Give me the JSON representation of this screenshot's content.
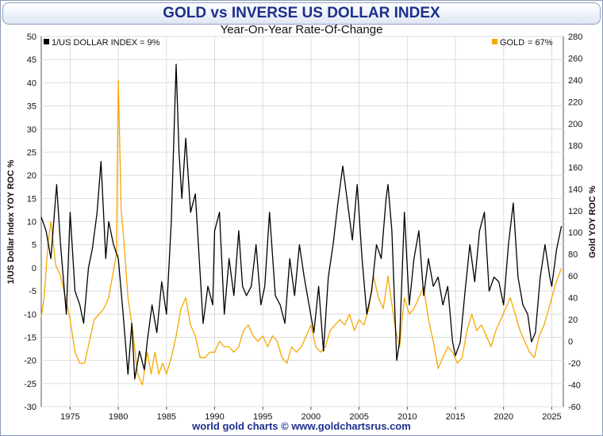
{
  "title": "GOLD vs INVERSE US DOLLAR INDEX",
  "subtitle": "Year-On-Year Rate-Of-Change",
  "footer": "world gold charts © www.goldchartsrus.com",
  "colors": {
    "usd": "#000000",
    "gold": "#f5a800",
    "title": "#1d2f8c"
  },
  "chart_data": {
    "type": "line",
    "x_ticks": [
      "1975",
      "1980",
      "1985",
      "1990",
      "1995",
      "2000",
      "2005",
      "2010",
      "2015",
      "2020",
      "2025"
    ],
    "xlim": [
      1972.0,
      2026.2
    ],
    "left_axis": {
      "label": "1/US Dollar Index  YOY ROC  %",
      "ylim": [
        -30,
        50
      ],
      "ticks": [
        "-30",
        "-25",
        "-20",
        "-15",
        "-10",
        "-5",
        "0",
        "5",
        "10",
        "15",
        "20",
        "25",
        "30",
        "35",
        "40",
        "45",
        "50"
      ]
    },
    "right_axis": {
      "label": "Gold  YOY ROC  %",
      "ylim": [
        -60,
        280
      ],
      "ticks": [
        "-60",
        "-40",
        "-20",
        "0",
        "20",
        "40",
        "60",
        "80",
        "100",
        "120",
        "140",
        "160",
        "180",
        "200",
        "220",
        "240",
        "260",
        "280"
      ]
    },
    "legend": {
      "usd_label": "1/US DOLLAR INDEX",
      "usd_value": "= 9%",
      "gold_label": "GOLD",
      "gold_value": "= 67%",
      "usd_position": "top-left",
      "gold_position": "top-right"
    },
    "grid": true,
    "series": [
      {
        "name": "1/US DOLLAR INDEX",
        "axis": "left",
        "x": [
          1972.0,
          1972.5,
          1973.0,
          1973.6,
          1974.0,
          1974.6,
          1975.0,
          1975.5,
          1976.0,
          1976.4,
          1976.9,
          1977.3,
          1977.8,
          1978.2,
          1978.7,
          1979.0,
          1979.5,
          1980.0,
          1980.5,
          1981.0,
          1981.4,
          1981.7,
          1982.2,
          1982.7,
          1983.0,
          1983.5,
          1984.0,
          1984.5,
          1985.0,
          1985.5,
          1986.0,
          1986.3,
          1986.6,
          1987.0,
          1987.5,
          1988.0,
          1988.4,
          1988.8,
          1989.3,
          1989.8,
          1990.0,
          1990.5,
          1991.0,
          1991.5,
          1992.0,
          1992.5,
          1992.9,
          1993.3,
          1993.8,
          1994.3,
          1994.8,
          1995.2,
          1995.7,
          1996.3,
          1996.8,
          1997.3,
          1997.8,
          1998.3,
          1998.8,
          1999.3,
          1999.8,
          2000.3,
          2000.8,
          2001.3,
          2001.8,
          2002.3,
          2002.8,
          2003.3,
          2003.8,
          2004.3,
          2004.8,
          2005.3,
          2005.8,
          2006.3,
          2006.8,
          2007.3,
          2007.8,
          2008.0,
          2008.4,
          2008.9,
          2009.2,
          2009.7,
          2010.2,
          2010.7,
          2011.2,
          2011.7,
          2012.2,
          2012.7,
          2013.2,
          2013.7,
          2014.2,
          2014.7,
          2015.0,
          2015.5,
          2016.0,
          2016.5,
          2017.0,
          2017.5,
          2018.0,
          2018.5,
          2019.0,
          2019.5,
          2020.0,
          2020.5,
          2021.0,
          2021.5,
          2022.0,
          2022.5,
          2022.9,
          2023.3,
          2023.8,
          2024.3,
          2024.8,
          2025.0,
          2025.5,
          2026.0
        ],
        "values": [
          11,
          8,
          2,
          18,
          5,
          -10,
          12,
          -5,
          -8,
          -12,
          0,
          4,
          12,
          23,
          2,
          10,
          5,
          2,
          -10,
          -23,
          -12,
          -24,
          -18,
          -22,
          -16,
          -8,
          -14,
          -3,
          -10,
          10,
          44,
          25,
          15,
          28,
          12,
          16,
          2,
          -12,
          -4,
          -8,
          8,
          12,
          -10,
          2,
          -6,
          8,
          -4,
          -6,
          -4,
          5,
          -8,
          -4,
          12,
          -6,
          -8,
          -12,
          2,
          -6,
          5,
          -2,
          -8,
          -14,
          -4,
          -18,
          -2,
          5,
          14,
          22,
          14,
          6,
          18,
          2,
          -10,
          -5,
          5,
          2,
          15,
          18,
          8,
          -20,
          -16,
          12,
          -8,
          2,
          8,
          -6,
          2,
          -4,
          -2,
          -8,
          -4,
          -16,
          -19,
          -16,
          -5,
          5,
          -3,
          8,
          12,
          -5,
          -2,
          -3,
          -8,
          5,
          14,
          -2,
          -8,
          -10,
          -16,
          -14,
          -2,
          5,
          -2,
          -4,
          4,
          9
        ],
        "color": "#000000"
      },
      {
        "name": "GOLD",
        "axis": "right",
        "x": [
          1972.0,
          1972.3,
          1972.7,
          1973.0,
          1973.5,
          1974.0,
          1974.5,
          1975.0,
          1975.5,
          1976.0,
          1976.5,
          1977.0,
          1977.5,
          1978.0,
          1978.5,
          1979.0,
          1979.4,
          1979.8,
          1980.0,
          1980.3,
          1980.6,
          1981.0,
          1981.5,
          1982.0,
          1982.5,
          1983.0,
          1983.4,
          1983.8,
          1984.2,
          1984.6,
          1985.0,
          1985.5,
          1986.0,
          1986.5,
          1987.0,
          1987.5,
          1988.0,
          1988.5,
          1989.0,
          1989.5,
          1990.0,
          1990.5,
          1991.0,
          1991.5,
          1992.0,
          1992.5,
          1993.0,
          1993.5,
          1994.0,
          1994.5,
          1995.0,
          1995.5,
          1996.0,
          1996.5,
          1997.0,
          1997.5,
          1998.0,
          1998.5,
          1999.0,
          1999.5,
          2000.0,
          2000.5,
          2001.0,
          2001.5,
          2002.0,
          2002.5,
          2003.0,
          2003.5,
          2004.0,
          2004.5,
          2005.0,
          2005.5,
          2006.0,
          2006.5,
          2007.0,
          2007.5,
          2008.0,
          2008.3,
          2008.8,
          2009.2,
          2009.7,
          2010.2,
          2010.7,
          2011.2,
          2011.7,
          2012.2,
          2012.7,
          2013.2,
          2013.7,
          2014.2,
          2014.7,
          2015.2,
          2015.7,
          2016.2,
          2016.7,
          2017.2,
          2017.7,
          2018.2,
          2018.7,
          2019.2,
          2019.7,
          2020.2,
          2020.7,
          2021.2,
          2021.7,
          2022.2,
          2022.7,
          2023.2,
          2023.7,
          2024.2,
          2024.7,
          2025.0,
          2025.3,
          2025.7,
          2026.0
        ],
        "values": [
          22,
          40,
          90,
          110,
          70,
          60,
          40,
          20,
          -10,
          -20,
          -20,
          0,
          20,
          25,
          30,
          40,
          60,
          80,
          240,
          120,
          90,
          40,
          10,
          -30,
          -40,
          -10,
          -30,
          -10,
          -30,
          -20,
          -30,
          -15,
          5,
          30,
          40,
          15,
          5,
          -15,
          -15,
          -10,
          -10,
          0,
          -5,
          -5,
          -10,
          -5,
          10,
          15,
          5,
          0,
          5,
          -5,
          5,
          0,
          -15,
          -20,
          -5,
          -10,
          -5,
          5,
          15,
          -5,
          -10,
          -5,
          10,
          15,
          20,
          15,
          25,
          10,
          20,
          15,
          30,
          60,
          40,
          30,
          60,
          40,
          10,
          -5,
          40,
          25,
          30,
          40,
          50,
          20,
          0,
          -25,
          -15,
          -5,
          -10,
          -20,
          -15,
          10,
          25,
          10,
          15,
          5,
          -5,
          10,
          20,
          30,
          40,
          25,
          10,
          0,
          -10,
          -15,
          5,
          15,
          30,
          40,
          50,
          60,
          67
        ],
        "color": "#f5a800"
      }
    ]
  }
}
